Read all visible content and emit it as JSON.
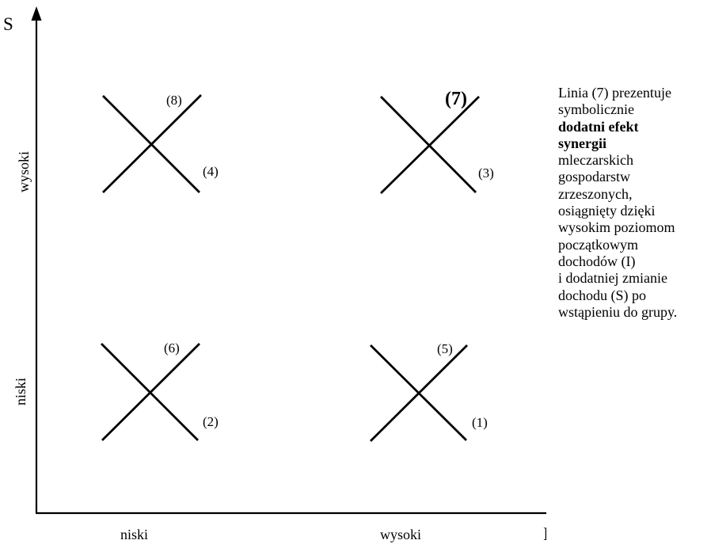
{
  "axes": {
    "x_title": "I",
    "y_title": "S",
    "x_levels": [
      "niski",
      "wysoki"
    ],
    "y_levels": [
      "niski",
      "wysoki"
    ]
  },
  "lines": [
    {
      "id": "line-8",
      "label": "(8)"
    },
    {
      "id": "line-4",
      "label": "(4)"
    },
    {
      "id": "line-7",
      "label": "(7)"
    },
    {
      "id": "line-3",
      "label": "(3)"
    },
    {
      "id": "line-6",
      "label": "(6)"
    },
    {
      "id": "line-2",
      "label": "(2)"
    },
    {
      "id": "line-5",
      "label": "(5)"
    },
    {
      "id": "line-1",
      "label": "(1)"
    }
  ],
  "caption": {
    "intro": "Linia (7) prezentuje\nsymbolicznie",
    "emphasis": "dodatni efekt\nsynergii",
    "rest": "mleczarskich\ngospodarstw\nzrzeszonych,\nosiągnięty dzięki\nwysokim poziomom\npoczątkowym\ndochodów (I)\ni dodatniej zmianie\ndochodu (S) po\nwstąpieniu do grupy."
  },
  "colors": {
    "ink": "#000000",
    "background": "#ffffff"
  }
}
